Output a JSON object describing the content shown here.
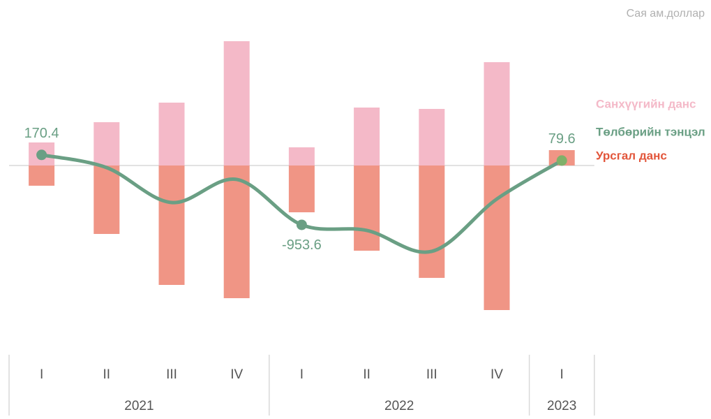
{
  "chart_data": {
    "type": "bar",
    "unit_label": "Сая ам.доллар",
    "categories": [
      "I",
      "II",
      "III",
      "IV",
      "I",
      "II",
      "III",
      "IV",
      "I"
    ],
    "groups": [
      {
        "label": "2021",
        "span": 4
      },
      {
        "label": "2022",
        "span": 4
      },
      {
        "label": "2023",
        "span": 1
      }
    ],
    "ylim": [
      -2700,
      2300
    ],
    "series": [
      {
        "name": "Санхүүгийн данс",
        "type": "bar",
        "color": "#f4b9c8",
        "label_color": "#f4b9c8",
        "values": [
          370,
          696,
          1010,
          1997,
          292,
          931,
          909,
          1660,
          null
        ]
      },
      {
        "name": "Урсгал данс",
        "type": "bar",
        "color": "#f09585",
        "label_color": "#e2553a",
        "values": [
          -325,
          -1100,
          -1919,
          -2132,
          -752,
          -1369,
          -1806,
          -2323,
          247
        ]
      },
      {
        "name": "Төлбөрийн тэнцэл",
        "type": "line",
        "color": "#6a9f84",
        "label_color": "#6a9f84",
        "values": [
          170.4,
          -34,
          -595,
          -224,
          -953.6,
          -1043,
          -1380,
          -539,
          79.6
        ],
        "value_labels": [
          "170.4",
          null,
          null,
          null,
          "-953.6",
          null,
          null,
          null,
          "79.6"
        ]
      }
    ]
  }
}
